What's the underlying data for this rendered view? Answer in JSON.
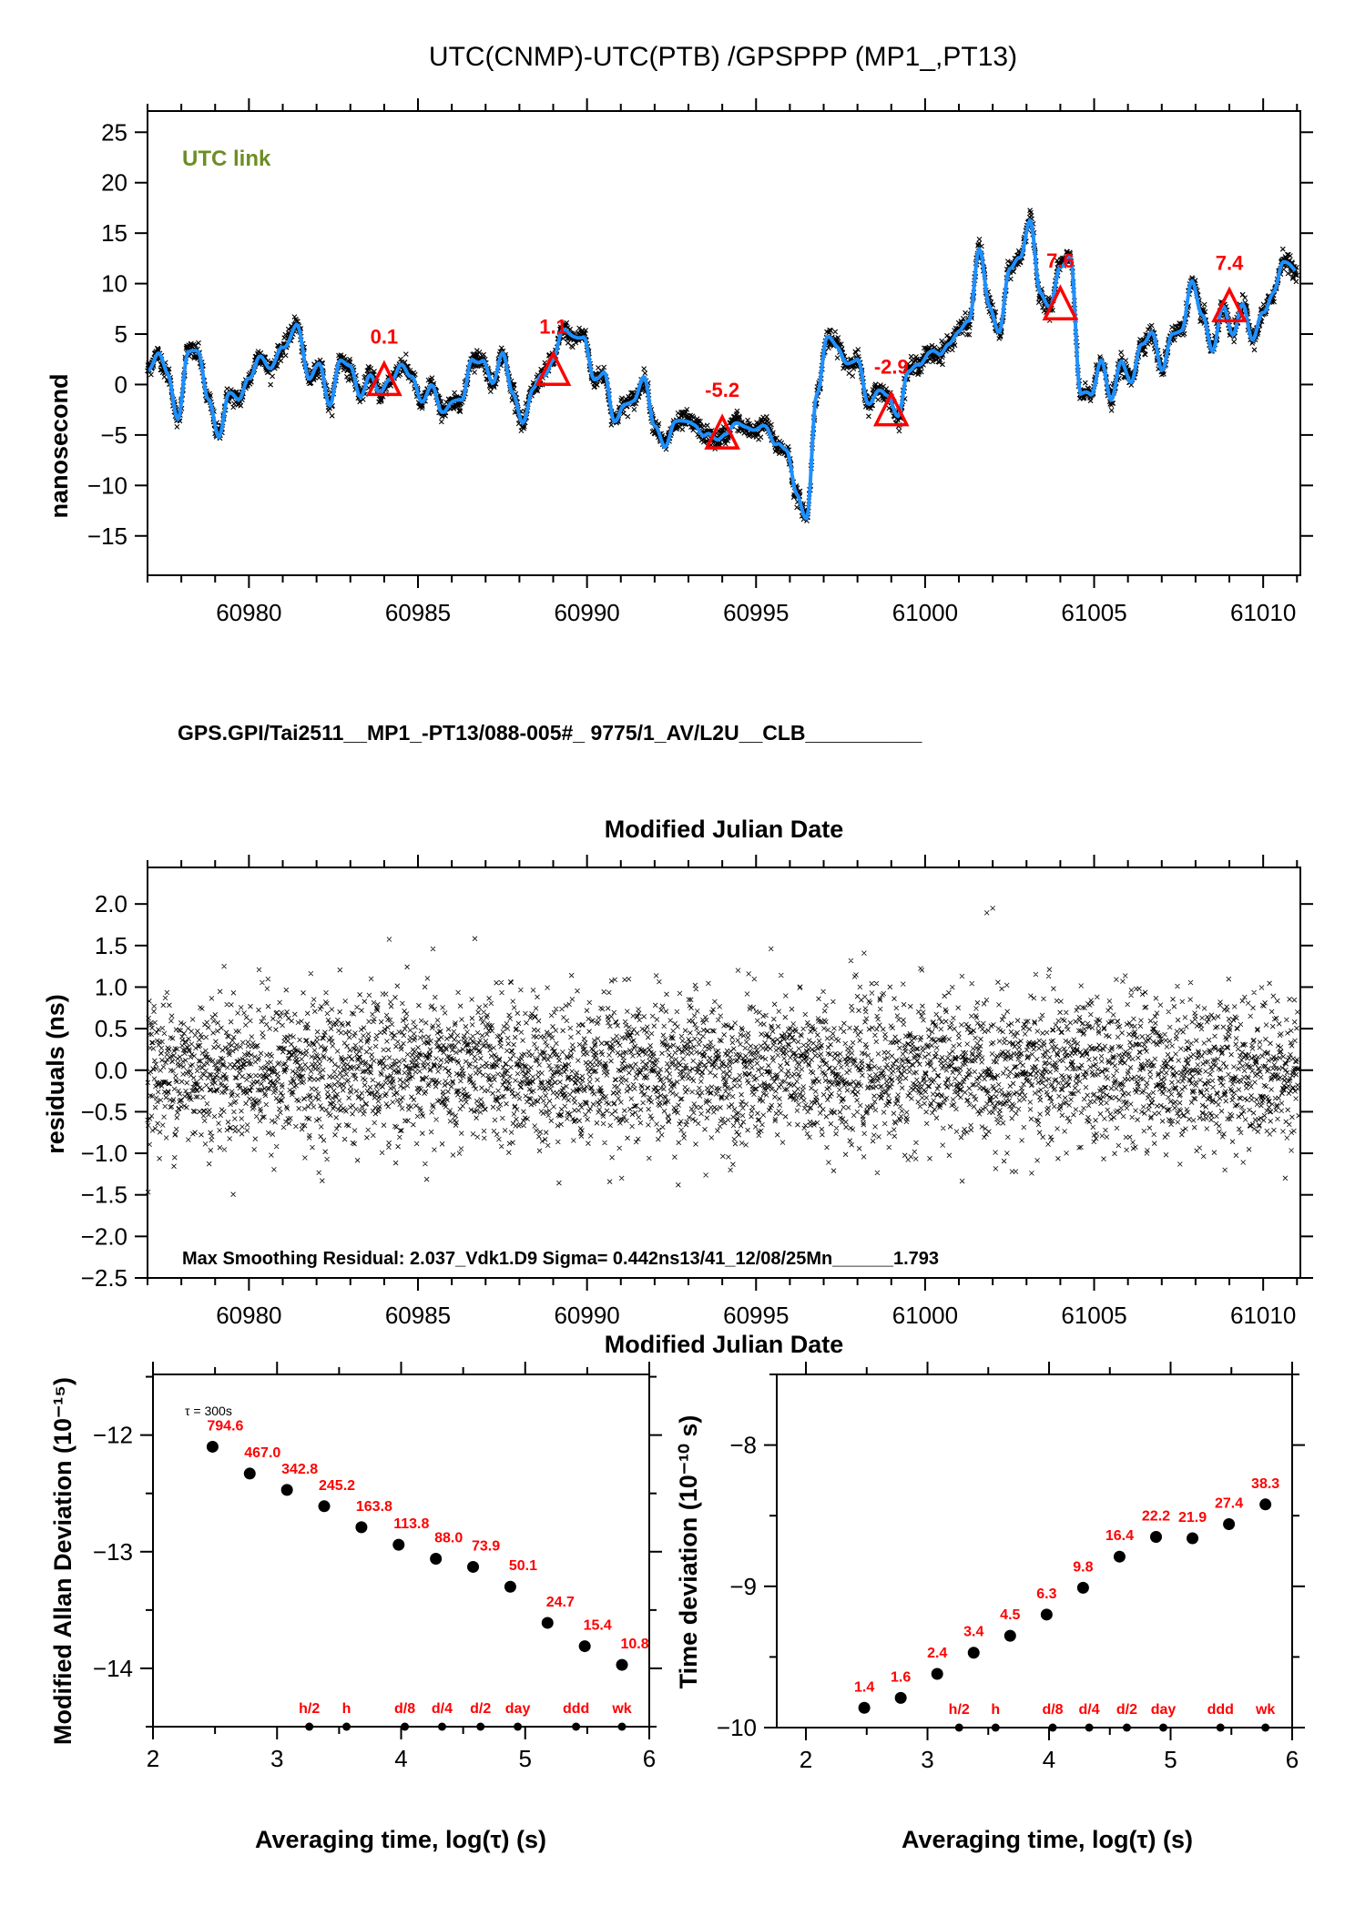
{
  "title": "UTC(CNMP)-UTC(PTB)  /GPSPPP  (MP1_,PT13)",
  "chart_data": [
    {
      "id": "timeseries",
      "type": "line",
      "title": "UTC(CNMP)-UTC(PTB)  /GPSPPP  (MP1_,PT13)",
      "xlabel": "Modified Julian Date",
      "ylabel": "nanosecond",
      "xlim": [
        60977,
        61011.1
      ],
      "ylim": [
        -18.9,
        27.1
      ],
      "xticks": [
        60980,
        60985,
        60990,
        60995,
        61000,
        61005,
        61010
      ],
      "yticks": [
        -15,
        -10,
        -5,
        0,
        5,
        10,
        15,
        20,
        25
      ],
      "legend_label": "UTC link",
      "legend_color": "#6b8e23",
      "raw_color": "#000000",
      "smooth_color": "#1e90ff",
      "footer": "GPS.GPI/Tai2511__MP1_-PT13/088-005#_  9775/1_AV/L2U__CLB__________",
      "smooth_series": {
        "x": [
          60977.0,
          60977.3,
          60977.6,
          60977.9,
          60978.2,
          60978.5,
          60978.8,
          60979.1,
          60979.4,
          60979.7,
          60980.0,
          60980.3,
          60980.6,
          60981.0,
          60981.4,
          60981.8,
          60982.1,
          60982.4,
          60982.7,
          60983.0,
          60983.3,
          60983.6,
          60983.9,
          60984.2,
          60984.5,
          60984.8,
          60985.1,
          60985.4,
          60985.7,
          60986.0,
          60986.3,
          60986.6,
          60986.9,
          60987.2,
          60987.5,
          60987.8,
          60988.1,
          60988.4,
          60988.7,
          60989.0,
          60989.3,
          60989.6,
          60989.9,
          60990.2,
          60990.5,
          60990.8,
          60991.1,
          60991.4,
          60991.7,
          60992.0,
          60992.3,
          60992.6,
          60992.9,
          60993.2,
          60993.5,
          60993.8,
          60994.1,
          60994.4,
          60994.7,
          60995.0,
          60995.3,
          60995.6,
          60995.9,
          60996.2,
          60996.5,
          60996.8,
          60997.1,
          60997.4,
          60997.7,
          60998.0,
          60998.3,
          60998.6,
          60998.9,
          60999.2,
          60999.5,
          60999.8,
          61000.1,
          61000.4,
          61000.7,
          61001.0,
          61001.3,
          61001.6,
          61001.9,
          61002.2,
          61002.5,
          61002.8,
          61003.1,
          61003.4,
          61003.7,
          61004.0,
          61004.3,
          61004.6,
          61004.9,
          61005.2,
          61005.5,
          61005.8,
          61006.1,
          61006.4,
          61006.7,
          61007.0,
          61007.3,
          61007.6,
          61007.9,
          61008.2,
          61008.5,
          61008.8,
          61009.1,
          61009.4,
          61009.7,
          61010.0,
          61010.3,
          61010.6,
          61011.0
        ],
        "y": [
          1.5,
          3.0,
          1.0,
          -3.5,
          3.5,
          3.0,
          -1.5,
          -5.0,
          -1.0,
          -1.5,
          0.5,
          3.0,
          1.5,
          3.5,
          6.0,
          0.5,
          2.0,
          -2.0,
          2.5,
          1.5,
          -1.0,
          1.0,
          -1.0,
          0.5,
          2.0,
          1.0,
          -2.0,
          0.0,
          -2.5,
          -2.0,
          -1.5,
          2.5,
          2.5,
          0.0,
          3.0,
          -0.5,
          -4.0,
          -0.5,
          1.0,
          2.5,
          5.5,
          4.5,
          5.0,
          0.5,
          1.0,
          -3.5,
          -2.0,
          -1.5,
          0.5,
          -4.0,
          -6.0,
          -4.0,
          -3.5,
          -4.0,
          -5.0,
          -5.5,
          -5.0,
          -3.5,
          -4.5,
          -4.5,
          -4.0,
          -6.0,
          -6.5,
          -11.0,
          -13.0,
          -1.0,
          4.5,
          4.0,
          2.0,
          2.5,
          -2.0,
          -0.5,
          -1.0,
          -3.5,
          1.5,
          2.0,
          3.0,
          3.0,
          4.0,
          5.5,
          6.0,
          13.5,
          8.0,
          5.0,
          11.5,
          12.5,
          16.5,
          9.0,
          7.5,
          12.0,
          12.5,
          -1.0,
          -1.0,
          2.5,
          -1.5,
          2.0,
          0.5,
          4.0,
          5.0,
          1.5,
          5.0,
          5.5,
          10.0,
          7.0,
          3.5,
          7.5,
          5.0,
          8.0,
          4.5,
          7.0,
          9.0,
          12.5,
          11.0
        ]
      },
      "markers": [
        {
          "x": 60984.0,
          "y": 0.1,
          "label": "0.1"
        },
        {
          "x": 60989.0,
          "y": 1.1,
          "label": "1.1"
        },
        {
          "x": 60994.0,
          "y": -5.2,
          "label": "-5.2"
        },
        {
          "x": 60999.0,
          "y": -2.9,
          "label": "-2.9"
        },
        {
          "x": 61004.0,
          "y": 7.6,
          "label": "7.6"
        },
        {
          "x": 61009.0,
          "y": 7.4,
          "label": "7.4"
        }
      ]
    },
    {
      "id": "residuals",
      "type": "scatter",
      "xlabel": "Modified Julian Date",
      "ylabel": "residuals (ns)",
      "xlim": [
        60977,
        61011.1
      ],
      "ylim": [
        -2.5,
        2.44
      ],
      "xticks": [
        60980,
        60985,
        60990,
        60995,
        61000,
        61005,
        61010
      ],
      "yticks": [
        -2.5,
        -2.0,
        -1.5,
        -1.0,
        -0.5,
        0.0,
        0.5,
        1.0,
        1.5,
        2.0
      ],
      "ytick_labels": [
        "−2.5",
        "−2.0",
        "−1.5",
        "−1.0",
        "−0.5",
        "0.0",
        "0.5",
        "1.0",
        "1.5",
        "2.0"
      ],
      "sigma_ns": 0.442,
      "max_residual": 2.037,
      "footer": "Max Smoothing Residual: 2.037_Vdk1.D9  Sigma= 0.442ns13/41_12/08/25Mn______1.793"
    },
    {
      "id": "mdev",
      "type": "scatter",
      "xlabel": "Averaging time, log(τ) (s)",
      "ylabel": "Modified Allan Deviation (10⁻¹⁵)",
      "xlim": [
        2,
        6
      ],
      "ylim": [
        -14.5,
        -11.48
      ],
      "xticks": [
        2,
        3,
        4,
        5,
        6
      ],
      "yticks": [
        -14,
        -13,
        -12
      ],
      "ytick_labels": [
        "−14",
        "−13",
        "−12"
      ],
      "annotation": "τ = 300s",
      "x": [
        2.48,
        2.78,
        3.08,
        3.38,
        3.68,
        3.98,
        4.28,
        4.58,
        4.88,
        5.18,
        5.48,
        5.78
      ],
      "y": [
        -12.1,
        -12.33,
        -12.47,
        -12.61,
        -12.79,
        -12.94,
        -13.06,
        -13.13,
        -13.3,
        -13.61,
        -13.81,
        -13.97
      ],
      "labels": [
        "794.6",
        "467.0",
        "342.8",
        "245.2",
        "163.8",
        "113.8",
        "88.0",
        "73.9",
        "50.1",
        "24.7",
        "15.4",
        "10.8"
      ],
      "time_markers": [
        {
          "x": 3.26,
          "label": "h/2"
        },
        {
          "x": 3.56,
          "label": "h"
        },
        {
          "x": 4.03,
          "label": "d/8"
        },
        {
          "x": 4.33,
          "label": "d/4"
        },
        {
          "x": 4.64,
          "label": "d/2"
        },
        {
          "x": 4.94,
          "label": "day"
        },
        {
          "x": 5.41,
          "label": "ddd"
        },
        {
          "x": 5.78,
          "label": "wk"
        }
      ]
    },
    {
      "id": "tdev",
      "type": "scatter",
      "xlabel": "Averaging time, log(τ) (s)",
      "ylabel": "Time deviation (10⁻¹⁰ s)",
      "xlim": [
        1.76,
        6
      ],
      "ylim": [
        -10,
        -7.5
      ],
      "xticks": [
        2,
        3,
        4,
        5,
        6
      ],
      "yticks": [
        -10,
        -9,
        -8
      ],
      "ytick_labels": [
        "−10",
        "−9",
        "−8"
      ],
      "x": [
        2.48,
        2.78,
        3.08,
        3.38,
        3.68,
        3.98,
        4.28,
        4.58,
        4.88,
        5.18,
        5.48,
        5.78
      ],
      "y": [
        -9.86,
        -9.79,
        -9.62,
        -9.47,
        -9.35,
        -9.2,
        -9.01,
        -8.79,
        -8.65,
        -8.66,
        -8.56,
        -8.42
      ],
      "labels": [
        "1.4",
        "1.6",
        "2.4",
        "3.4",
        "4.5",
        "6.3",
        "9.8",
        "16.4",
        "22.2",
        "21.9",
        "27.4",
        "38.3"
      ],
      "time_markers": [
        {
          "x": 3.26,
          "label": "h/2"
        },
        {
          "x": 3.56,
          "label": "h"
        },
        {
          "x": 4.03,
          "label": "d/8"
        },
        {
          "x": 4.33,
          "label": "d/4"
        },
        {
          "x": 4.64,
          "label": "d/2"
        },
        {
          "x": 4.94,
          "label": "day"
        },
        {
          "x": 5.41,
          "label": "ddd"
        },
        {
          "x": 5.78,
          "label": "wk"
        }
      ]
    }
  ]
}
